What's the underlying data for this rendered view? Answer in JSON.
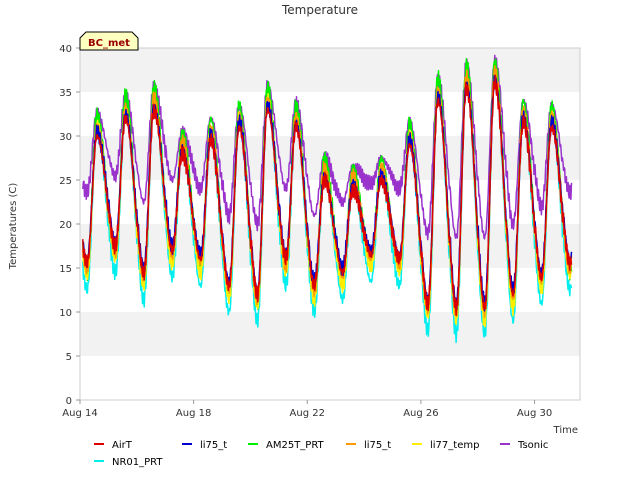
{
  "chart_data": {
    "type": "line",
    "title": "Temperature",
    "xlabel": "Time",
    "ylabel": "Temperatures (C)",
    "ylim": [
      0,
      40
    ],
    "xlim": [
      "Aug 14",
      "Aug 31.6"
    ],
    "yticks": [
      "0",
      "5",
      "10",
      "15",
      "20",
      "25",
      "30",
      "35",
      "40"
    ],
    "xticks": [
      "Aug 14",
      "Aug 18",
      "Aug 22",
      "Aug 26",
      "Aug 30"
    ],
    "grid": "horizontal bands",
    "legend_position": "bottom",
    "station_tag": "BC_met",
    "days": [
      "Aug 14",
      "Aug 15",
      "Aug 16",
      "Aug 17",
      "Aug 18",
      "Aug 19",
      "Aug 20",
      "Aug 21",
      "Aug 22",
      "Aug 23",
      "Aug 24",
      "Aug 25",
      "Aug 26",
      "Aug 27",
      "Aug 28",
      "Aug 29",
      "Aug 30",
      "Aug 31"
    ],
    "daily_min_airT": [
      15.5,
      17.5,
      14.5,
      17.0,
      16.0,
      13.0,
      12.0,
      16.0,
      13.0,
      14.5,
      16.5,
      16.0,
      11.0,
      10.5,
      10.5,
      12.0,
      14.0,
      15.5
    ],
    "daily_max_airT": [
      31.0,
      33.0,
      34.0,
      29.0,
      30.5,
      32.0,
      34.0,
      32.0,
      26.0,
      25.0,
      26.0,
      30.0,
      35.0,
      36.5,
      37.0,
      32.5,
      32.0,
      30.0
    ],
    "series": [
      {
        "name": "AirT",
        "color": "#dd0000",
        "min_offset": 0.0,
        "max_offset": -1.0
      },
      {
        "name": "li75_t",
        "color": "#0000cc",
        "min_offset": 0.5,
        "max_offset": -0.5
      },
      {
        "name": "AM25T_PRT",
        "color": "#00ee00",
        "min_offset": -1.0,
        "max_offset": 1.5
      },
      {
        "name": "li75_t",
        "color": "#ff9900",
        "min_offset": -0.5,
        "max_offset": 0.3
      },
      {
        "name": "li77_temp",
        "color": "#ffee00",
        "min_offset": -1.5,
        "max_offset": 0.0
      },
      {
        "name": "Tsonic",
        "color": "#9933cc",
        "min_offset": 8.0,
        "max_offset": 1.5
      },
      {
        "name": "NR01_PRT",
        "color": "#00eeee",
        "min_offset": -3.0,
        "max_offset": -0.5
      }
    ]
  },
  "legend": {
    "row1": [
      "AirT",
      "li75_t",
      "AM25T_PRT",
      "li75_t",
      "li77_temp",
      "Tsonic"
    ],
    "row2": [
      "NR01_PRT"
    ]
  }
}
